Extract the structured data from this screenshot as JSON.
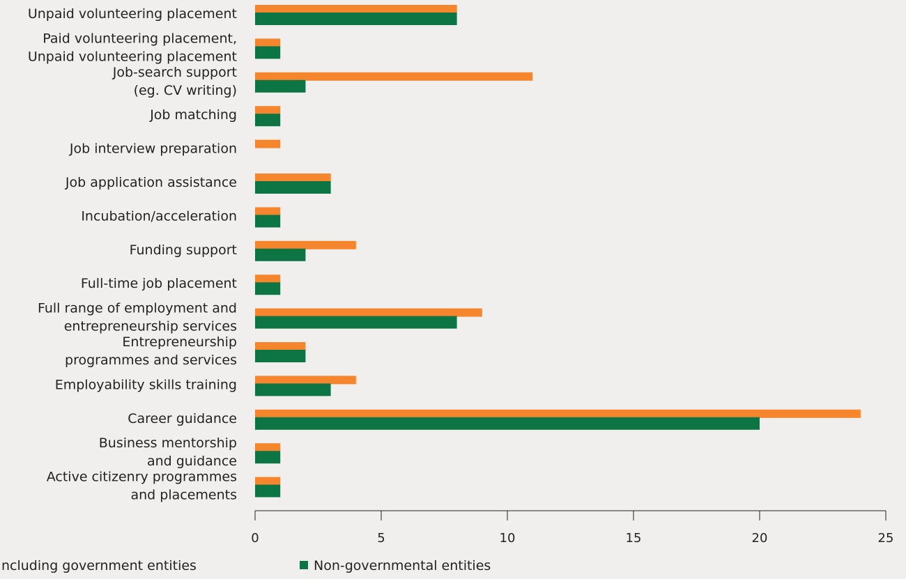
{
  "chart_data": {
    "type": "bar",
    "orientation": "horizontal",
    "title": "",
    "xlabel": "",
    "ylabel": "",
    "xlim": [
      0,
      25
    ],
    "xticks": [
      0,
      5,
      10,
      15,
      20,
      25
    ],
    "grid": false,
    "legend_position": "bottom",
    "categories": [
      [
        "Unpaid volunteering placement"
      ],
      [
        "Paid volunteering placement,",
        "Unpaid volunteering placement"
      ],
      [
        "Job-search support",
        "(eg. CV writing)"
      ],
      [
        "Job matching"
      ],
      [
        "Job interview preparation"
      ],
      [
        "Job application assistance"
      ],
      [
        "Incubation/acceleration"
      ],
      [
        "Funding support"
      ],
      [
        "Full-time job placement"
      ],
      [
        "Full range of employment and",
        "entrepreneurship services"
      ],
      [
        "Entrepreneurship",
        "programmes and services"
      ],
      [
        "Employability skills training"
      ],
      [
        "Career guidance"
      ],
      [
        "Business mentorship",
        "and guidance"
      ],
      [
        "Active citizenry programmes",
        "and placements"
      ]
    ],
    "series": [
      {
        "name": "ncluding government entities",
        "color": "#f5862e",
        "values": [
          8,
          1,
          11,
          1,
          1,
          3,
          1,
          4,
          1,
          9,
          2,
          4,
          24,
          1,
          1
        ]
      },
      {
        "name": "Non-governmental entities",
        "color": "#0d7444",
        "values": [
          8,
          1,
          2,
          1,
          0,
          3,
          1,
          2,
          1,
          8,
          2,
          3,
          20,
          1,
          1
        ]
      }
    ]
  }
}
